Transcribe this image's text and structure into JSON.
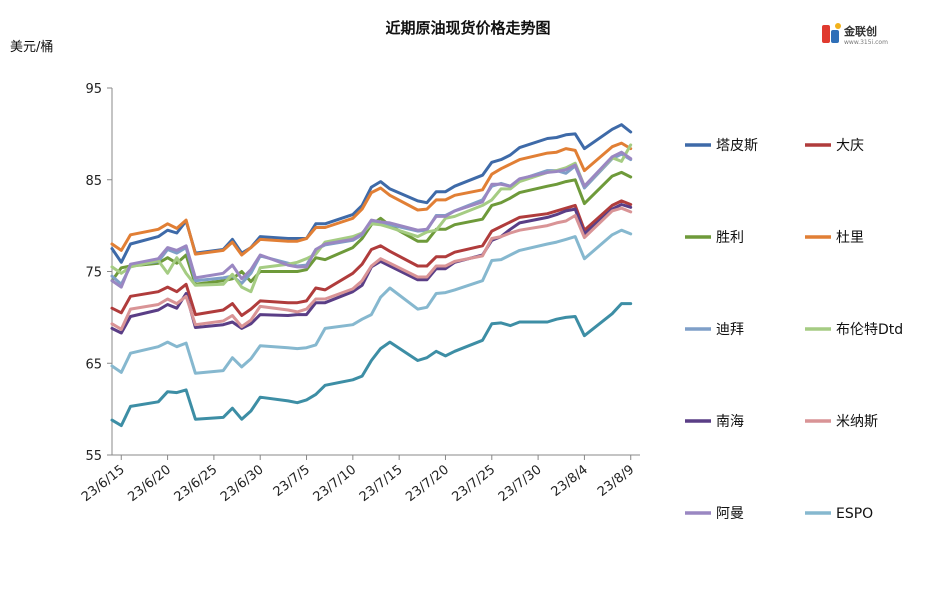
{
  "chart_data": {
    "type": "line",
    "title": "近期原油现货价格走势图",
    "ylabel": "美元/桶",
    "ylim": [
      55,
      95
    ],
    "yticks": [
      55,
      65,
      75,
      85,
      95
    ],
    "xticks": [
      "23/6/15",
      "23/6/20",
      "23/6/25",
      "23/6/30",
      "23/7/5",
      "23/7/10",
      "23/7/15",
      "23/7/20",
      "23/7/25",
      "23/7/30",
      "23/8/4",
      "23/8/9"
    ],
    "grid": false,
    "legend": "right",
    "x": [
      "23/6/14",
      "23/6/15",
      "23/6/16",
      "23/6/19",
      "23/6/20",
      "23/6/21",
      "23/6/22",
      "23/6/23",
      "23/6/26",
      "23/6/27",
      "23/6/28",
      "23/6/29",
      "23/6/30",
      "23/7/3",
      "23/7/4",
      "23/7/5",
      "23/7/6",
      "23/7/7",
      "23/7/10",
      "23/7/11",
      "23/7/12",
      "23/7/13",
      "23/7/14",
      "23/7/17",
      "23/7/18",
      "23/7/19",
      "23/7/20",
      "23/7/21",
      "23/7/24",
      "23/7/25",
      "23/7/26",
      "23/7/27",
      "23/7/28",
      "23/7/31",
      "23/8/1",
      "23/8/2",
      "23/8/3",
      "23/8/4",
      "23/8/7",
      "23/8/8",
      "23/8/9"
    ],
    "series": [
      {
        "name": "塔皮斯",
        "color": "#3e6aa8",
        "values": [
          77.5,
          76.0,
          78.0,
          78.8,
          79.5,
          79.2,
          80.5,
          77.0,
          77.4,
          78.5,
          77.0,
          77.6,
          78.8,
          78.6,
          78.6,
          78.6,
          80.2,
          80.2,
          81.2,
          82.2,
          84.2,
          84.8,
          84.0,
          82.7,
          82.5,
          83.7,
          83.7,
          84.3,
          85.5,
          86.9,
          87.2,
          87.7,
          88.5,
          89.5,
          89.6,
          89.9,
          90.0,
          88.4,
          90.5,
          91.0,
          90.2
        ]
      },
      {
        "name": "大庆",
        "color": "#b03c3c",
        "values": [
          71.0,
          70.5,
          72.3,
          72.8,
          73.3,
          72.8,
          73.6,
          70.3,
          70.8,
          71.5,
          70.2,
          70.9,
          71.8,
          71.6,
          71.6,
          71.8,
          73.2,
          73.0,
          74.8,
          75.8,
          77.4,
          77.8,
          77.2,
          75.6,
          75.6,
          76.6,
          76.6,
          77.1,
          77.8,
          79.4,
          79.9,
          80.4,
          80.9,
          81.3,
          81.6,
          81.9,
          82.2,
          79.5,
          82.2,
          82.7,
          82.3
        ]
      },
      {
        "name": "胜利",
        "color": "#6e9a3a",
        "values": [
          74.0,
          75.4,
          75.6,
          75.9,
          76.5,
          75.9,
          76.8,
          73.6,
          74.0,
          74.2,
          75.0,
          73.9,
          75.0,
          75.0,
          75.0,
          75.2,
          76.5,
          76.3,
          77.6,
          78.6,
          80.1,
          80.8,
          80.0,
          78.3,
          78.3,
          79.6,
          79.6,
          80.1,
          80.7,
          82.2,
          82.5,
          83.0,
          83.6,
          84.3,
          84.5,
          84.8,
          85.0,
          82.4,
          85.4,
          85.8,
          85.3
        ]
      },
      {
        "name": "杜里",
        "color": "#e17f35",
        "values": [
          78.0,
          77.3,
          79.0,
          79.6,
          80.2,
          79.7,
          80.6,
          76.9,
          77.3,
          78.2,
          76.8,
          77.6,
          78.5,
          78.3,
          78.3,
          78.6,
          79.8,
          79.8,
          80.8,
          81.8,
          83.6,
          84.1,
          83.3,
          81.7,
          81.8,
          82.8,
          82.8,
          83.3,
          83.9,
          85.6,
          86.2,
          86.7,
          87.2,
          87.9,
          88.0,
          88.4,
          88.2,
          86.0,
          88.6,
          89.0,
          88.4
        ]
      },
      {
        "name": "迪拜",
        "color": "#7f9fc8",
        "values": [
          74.5,
          73.6,
          75.6,
          76.1,
          77.4,
          77.0,
          77.6,
          74.0,
          74.3,
          74.5,
          73.7,
          74.8,
          76.7,
          75.9,
          75.6,
          75.7,
          77.4,
          77.9,
          78.4,
          79.0,
          80.5,
          80.3,
          80.1,
          79.4,
          79.5,
          81.1,
          81.1,
          81.6,
          82.8,
          84.3,
          84.6,
          84.3,
          85.0,
          86.0,
          86.0,
          85.7,
          86.5,
          84.1,
          87.3,
          87.8,
          87.2
        ]
      },
      {
        "name": "布伦特Dtd",
        "color": "#a5cc83",
        "values": [
          75.5,
          74.8,
          75.5,
          76.2,
          74.8,
          76.5,
          74.8,
          73.5,
          73.6,
          74.7,
          73.3,
          72.8,
          75.4,
          75.8,
          76.0,
          76.4,
          76.9,
          78.2,
          78.8,
          79.2,
          80.2,
          80.1,
          79.8,
          78.8,
          79.3,
          79.5,
          80.8,
          81.0,
          82.2,
          82.8,
          84.0,
          84.0,
          84.8,
          85.8,
          86.0,
          86.3,
          86.8,
          84.3,
          87.4,
          87.0,
          88.8
        ]
      },
      {
        "name": "南海",
        "color": "#5a3e86",
        "values": [
          68.8,
          68.3,
          70.1,
          70.8,
          71.4,
          71.0,
          72.6,
          68.9,
          69.2,
          69.5,
          68.8,
          69.3,
          70.3,
          70.2,
          70.3,
          70.3,
          71.6,
          71.6,
          72.8,
          73.5,
          75.5,
          76.1,
          75.6,
          74.1,
          74.1,
          75.3,
          75.3,
          76.0,
          76.8,
          78.4,
          78.8,
          79.6,
          80.3,
          80.9,
          81.2,
          81.6,
          81.8,
          79.1,
          81.8,
          82.3,
          82.0
        ]
      },
      {
        "name": "米纳斯",
        "color": "#d99496",
        "values": [
          69.3,
          68.7,
          70.9,
          71.4,
          72.0,
          71.5,
          72.3,
          69.2,
          69.6,
          70.2,
          69.0,
          69.7,
          71.2,
          70.8,
          70.6,
          70.9,
          72.0,
          72.0,
          73.1,
          74.0,
          75.6,
          76.4,
          75.9,
          74.4,
          74.4,
          75.6,
          75.6,
          76.1,
          76.7,
          78.6,
          78.8,
          79.2,
          79.5,
          80.0,
          80.3,
          80.5,
          81.1,
          78.7,
          81.6,
          81.9,
          81.5
        ]
      },
      {
        "name": "阿曼",
        "color": "#9a87c2",
        "values": [
          74.0,
          73.3,
          75.8,
          76.4,
          77.6,
          77.3,
          77.8,
          74.3,
          74.8,
          75.7,
          74.2,
          75.2,
          76.8,
          75.7,
          75.5,
          75.5,
          77.4,
          78.0,
          78.5,
          79.1,
          80.6,
          80.4,
          80.3,
          79.5,
          79.6,
          81.0,
          81.0,
          81.6,
          82.6,
          84.5,
          84.5,
          84.3,
          85.1,
          85.8,
          85.9,
          86.1,
          86.6,
          84.3,
          87.5,
          88.0,
          87.3
        ]
      },
      {
        "name": "ESPO",
        "color": "#86b8cf",
        "values": [
          64.7,
          64.0,
          66.1,
          66.8,
          67.3,
          66.8,
          67.2,
          63.9,
          64.2,
          65.6,
          64.6,
          65.5,
          66.9,
          66.7,
          66.6,
          66.7,
          67.0,
          68.8,
          69.2,
          69.8,
          70.3,
          72.2,
          73.2,
          70.9,
          71.1,
          72.6,
          72.7,
          73.0,
          74.0,
          76.2,
          76.3,
          76.8,
          77.3,
          78.0,
          78.2,
          78.5,
          78.8,
          76.4,
          79.0,
          79.5,
          79.1
        ]
      },
      {
        "name": "",
        "color": "#3d8ea5",
        "values": [
          58.8,
          58.2,
          60.3,
          60.8,
          61.9,
          61.8,
          62.1,
          58.9,
          59.1,
          60.1,
          58.9,
          59.8,
          61.3,
          60.9,
          60.7,
          61.0,
          61.6,
          62.6,
          63.2,
          63.6,
          65.3,
          66.6,
          67.3,
          65.3,
          65.6,
          66.3,
          65.8,
          66.3,
          67.5,
          69.3,
          69.4,
          69.1,
          69.5,
          69.5,
          69.8,
          70.0,
          70.1,
          68.0,
          70.4,
          71.5,
          71.5
        ]
      }
    ]
  },
  "logo": {
    "text": "金联创",
    "sub": "www.315i.com"
  }
}
